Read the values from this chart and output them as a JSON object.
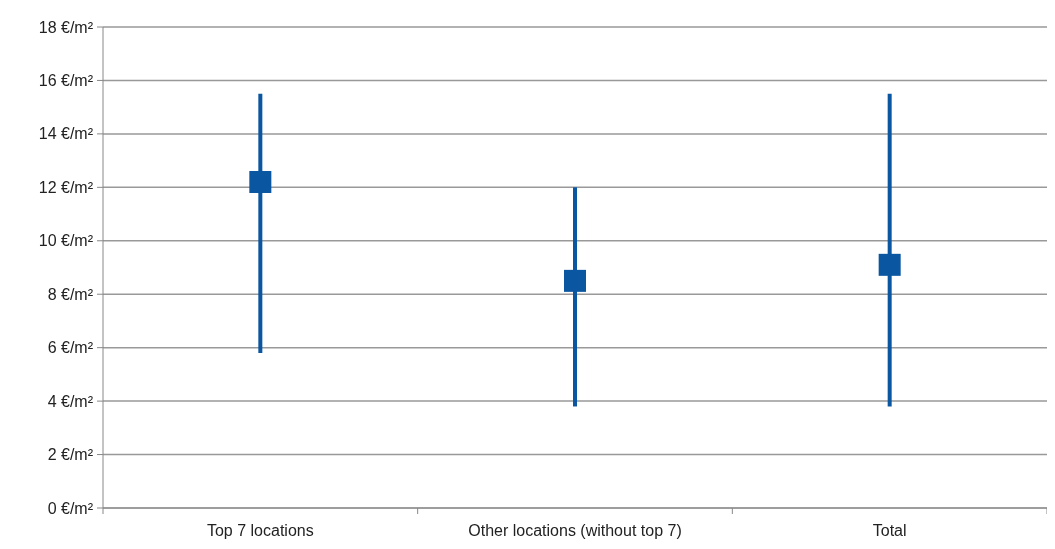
{
  "chart_data": {
    "type": "scatter",
    "categories": [
      "Top 7 locations",
      "Other locations (without top 7)",
      "Total"
    ],
    "series": [
      {
        "color": "#0a56a0",
        "values": [
          12.2,
          8.5,
          9.1
        ],
        "errors": [
          [
            5.8,
            15.5
          ],
          [
            3.8,
            12.0
          ],
          [
            3.8,
            15.5
          ]
        ]
      }
    ],
    "ylim": [
      0,
      18
    ],
    "yticks": [
      {
        "value": 0,
        "label": "0 €/m²"
      },
      {
        "value": 2,
        "label": "2 €/m²"
      },
      {
        "value": 4,
        "label": "4 €/m²"
      },
      {
        "value": 6,
        "label": "6 €/m²"
      },
      {
        "value": 8,
        "label": "8 €/m²"
      },
      {
        "value": 10,
        "label": "10 €/m²"
      },
      {
        "value": 12,
        "label": "12 €/m²"
      },
      {
        "value": 14,
        "label": "14 €/m²"
      },
      {
        "value": 16,
        "label": "16 €/m²"
      },
      {
        "value": 18,
        "label": "18 €/m²"
      }
    ],
    "grid": "y",
    "marker": "square"
  }
}
